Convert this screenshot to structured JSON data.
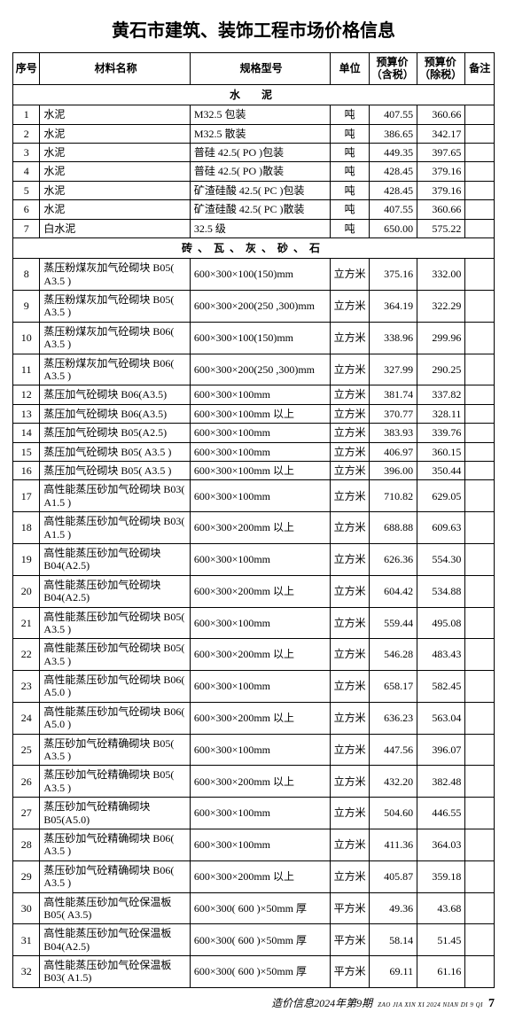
{
  "title": "黄石市建筑、装饰工程市场价格信息",
  "headers": {
    "seq": "序号",
    "name": "材料名称",
    "spec": "规格型号",
    "unit": "单位",
    "p1": "预算价（含税）",
    "p2": "预算价（除税）",
    "note": "备注"
  },
  "sections": [
    {
      "label": "水　泥",
      "rows": [
        {
          "seq": "1",
          "name": "水泥",
          "spec": "M32.5 包装",
          "unit": "吨",
          "p1": "407.55",
          "p2": "360.66",
          "note": ""
        },
        {
          "seq": "2",
          "name": "水泥",
          "spec": "M32.5 散装",
          "unit": "吨",
          "p1": "386.65",
          "p2": "342.17",
          "note": ""
        },
        {
          "seq": "3",
          "name": "水泥",
          "spec": "普硅 42.5( PO )包装",
          "unit": "吨",
          "p1": "449.35",
          "p2": "397.65",
          "note": ""
        },
        {
          "seq": "4",
          "name": "水泥",
          "spec": "普硅 42.5( PO )散装",
          "unit": "吨",
          "p1": "428.45",
          "p2": "379.16",
          "note": ""
        },
        {
          "seq": "5",
          "name": "水泥",
          "spec": "矿渣硅酸 42.5( PC )包装",
          "unit": "吨",
          "p1": "428.45",
          "p2": "379.16",
          "note": ""
        },
        {
          "seq": "6",
          "name": "水泥",
          "spec": "矿渣硅酸 42.5( PC )散装",
          "unit": "吨",
          "p1": "407.55",
          "p2": "360.66",
          "note": ""
        },
        {
          "seq": "7",
          "name": "白水泥",
          "spec": "32.5 级",
          "unit": "吨",
          "p1": "650.00",
          "p2": "575.22",
          "note": ""
        }
      ]
    },
    {
      "label": "砖、瓦、灰、砂、石",
      "rows": [
        {
          "seq": "8",
          "name": "蒸压粉煤灰加气砼砌块 B05( A3.5 )",
          "spec": "600×300×100(150)mm",
          "unit": "立方米",
          "p1": "375.16",
          "p2": "332.00",
          "note": ""
        },
        {
          "seq": "9",
          "name": "蒸压粉煤灰加气砼砌块 B05( A3.5 )",
          "spec": "600×300×200(250 ,300)mm",
          "unit": "立方米",
          "p1": "364.19",
          "p2": "322.29",
          "note": ""
        },
        {
          "seq": "10",
          "name": "蒸压粉煤灰加气砼砌块 B06( A3.5 )",
          "spec": "600×300×100(150)mm",
          "unit": "立方米",
          "p1": "338.96",
          "p2": "299.96",
          "note": ""
        },
        {
          "seq": "11",
          "name": "蒸压粉煤灰加气砼砌块 B06( A3.5 )",
          "spec": "600×300×200(250 ,300)mm",
          "unit": "立方米",
          "p1": "327.99",
          "p2": "290.25",
          "note": ""
        },
        {
          "seq": "12",
          "name": "蒸压加气砼砌块 B06(A3.5)",
          "spec": "600×300×100mm",
          "unit": "立方米",
          "p1": "381.74",
          "p2": "337.82",
          "note": ""
        },
        {
          "seq": "13",
          "name": "蒸压加气砼砌块 B06(A3.5)",
          "spec": "600×300×100mm 以上",
          "unit": "立方米",
          "p1": "370.77",
          "p2": "328.11",
          "note": ""
        },
        {
          "seq": "14",
          "name": "蒸压加气砼砌块 B05(A2.5)",
          "spec": "600×300×100mm",
          "unit": "立方米",
          "p1": "383.93",
          "p2": "339.76",
          "note": ""
        },
        {
          "seq": "15",
          "name": "蒸压加气砼砌块 B05( A3.5 )",
          "spec": "600×300×100mm",
          "unit": "立方米",
          "p1": "406.97",
          "p2": "360.15",
          "note": ""
        },
        {
          "seq": "16",
          "name": "蒸压加气砼砌块 B05( A3.5 )",
          "spec": "600×300×100mm 以上",
          "unit": "立方米",
          "p1": "396.00",
          "p2": "350.44",
          "note": ""
        },
        {
          "seq": "17",
          "name": "高性能蒸压砂加气砼砌块 B03( A1.5 )",
          "spec": "600×300×100mm",
          "unit": "立方米",
          "p1": "710.82",
          "p2": "629.05",
          "note": ""
        },
        {
          "seq": "18",
          "name": "高性能蒸压砂加气砼砌块 B03( A1.5 )",
          "spec": "600×300×200mm 以上",
          "unit": "立方米",
          "p1": "688.88",
          "p2": "609.63",
          "note": ""
        },
        {
          "seq": "19",
          "name": "高性能蒸压砂加气砼砌块 B04(A2.5)",
          "spec": "600×300×100mm",
          "unit": "立方米",
          "p1": "626.36",
          "p2": "554.30",
          "note": ""
        },
        {
          "seq": "20",
          "name": "高性能蒸压砂加气砼砌块 B04(A2.5)",
          "spec": "600×300×200mm 以上",
          "unit": "立方米",
          "p1": "604.42",
          "p2": "534.88",
          "note": ""
        },
        {
          "seq": "21",
          "name": "高性能蒸压砂加气砼砌块 B05( A3.5 )",
          "spec": "600×300×100mm",
          "unit": "立方米",
          "p1": "559.44",
          "p2": "495.08",
          "note": ""
        },
        {
          "seq": "22",
          "name": "高性能蒸压砂加气砼砌块 B05( A3.5 )",
          "spec": "600×300×200mm 以上",
          "unit": "立方米",
          "p1": "546.28",
          "p2": "483.43",
          "note": ""
        },
        {
          "seq": "23",
          "name": "高性能蒸压砂加气砼砌块 B06( A5.0 )",
          "spec": "600×300×100mm",
          "unit": "立方米",
          "p1": "658.17",
          "p2": "582.45",
          "note": ""
        },
        {
          "seq": "24",
          "name": "高性能蒸压砂加气砼砌块 B06( A5.0 )",
          "spec": "600×300×200mm 以上",
          "unit": "立方米",
          "p1": "636.23",
          "p2": "563.04",
          "note": ""
        },
        {
          "seq": "25",
          "name": "蒸压砂加气砼精确砌块 B05( A3.5 )",
          "spec": "600×300×100mm",
          "unit": "立方米",
          "p1": "447.56",
          "p2": "396.07",
          "note": ""
        },
        {
          "seq": "26",
          "name": "蒸压砂加气砼精确砌块 B05( A3.5 )",
          "spec": "600×300×200mm 以上",
          "unit": "立方米",
          "p1": "432.20",
          "p2": "382.48",
          "note": ""
        },
        {
          "seq": "27",
          "name": "蒸压砂加气砼精确砌块 B05(A5.0)",
          "spec": "600×300×100mm",
          "unit": "立方米",
          "p1": "504.60",
          "p2": "446.55",
          "note": ""
        },
        {
          "seq": "28",
          "name": "蒸压砂加气砼精确砌块 B06( A3.5 )",
          "spec": "600×300×100mm",
          "unit": "立方米",
          "p1": "411.36",
          "p2": "364.03",
          "note": ""
        },
        {
          "seq": "29",
          "name": "蒸压砂加气砼精确砌块 B06( A3.5 )",
          "spec": "600×300×200mm 以上",
          "unit": "立方米",
          "p1": "405.87",
          "p2": "359.18",
          "note": ""
        },
        {
          "seq": "30",
          "name": "高性能蒸压砂加气砼保温板 B05( A3.5)",
          "spec": "600×300( 600 )×50mm 厚",
          "unit": "平方米",
          "p1": "49.36",
          "p2": "43.68",
          "note": ""
        },
        {
          "seq": "31",
          "name": "高性能蒸压砂加气砼保温板 B04(A2.5)",
          "spec": "600×300( 600 )×50mm 厚",
          "unit": "平方米",
          "p1": "58.14",
          "p2": "51.45",
          "note": ""
        },
        {
          "seq": "32",
          "name": "高性能蒸压砂加气砼保温板 B03( A1.5)",
          "spec": "600×300( 600 )×50mm 厚",
          "unit": "平方米",
          "p1": "69.11",
          "p2": "61.16",
          "note": ""
        }
      ]
    }
  ],
  "footer": {
    "journal": "造价信息2024年第9期",
    "sub": "ZAO JIA XIN XI 2024 NIAN DI 9 QI",
    "page": "7"
  }
}
